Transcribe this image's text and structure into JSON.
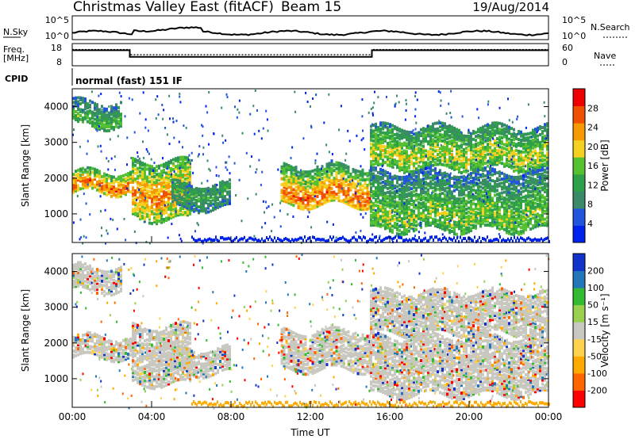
{
  "header": {
    "title": "Christmas Valley East (fitACF)",
    "beam": "Beam 15",
    "date": "19/Aug/2014"
  },
  "top_panels": {
    "nsky_label": "N.Sky",
    "nsky_ticks": [
      "10^5",
      "10^0"
    ],
    "nsearch_label": "N.Search",
    "nsearch_ticks": [
      "10^5",
      "10^0"
    ],
    "freq_label_1": "Freq.",
    "freq_label_2": "[MHz]",
    "freq_ticks": [
      "18",
      "8"
    ],
    "nave_label": "Nave",
    "nave_ticks": [
      "60",
      "0"
    ],
    "cpid_label": "CPID",
    "cpid_text": "normal (fast) 151 IF"
  },
  "colors": {
    "power": [
      "#0022ee",
      "#2255dd",
      "#3a8a6a",
      "#2fa04a",
      "#55c030",
      "#f5d020",
      "#f59a00",
      "#f05000",
      "#ee0000"
    ],
    "velocity": [
      "#ff0000",
      "#ff6600",
      "#ffaa00",
      "#ffd24d",
      "#c8c8c0",
      "#9ad050",
      "#33bb33",
      "#2277bb",
      "#1133cc"
    ]
  },
  "chart_data": [
    {
      "type": "heatmap",
      "name": "power",
      "ylabel": "Slant Range [km]",
      "yticks": [
        "4000",
        "3000",
        "2000",
        "1000"
      ],
      "ylim": [
        200,
        4500
      ],
      "xlim": [
        0,
        24
      ],
      "colorbar_label": "Power [dB]",
      "colorbar_ticks": [
        "28",
        "24",
        "20",
        "16",
        "12",
        "8",
        "4"
      ],
      "colorbar_range": [
        0,
        30
      ],
      "features": [
        {
          "t0": 0,
          "t1": 3.0,
          "r0": 1650,
          "r1": 1850,
          "r2": 2250,
          "level": 24
        },
        {
          "t0": 0,
          "t1": 2.5,
          "r0": 3500,
          "r1": 3650,
          "r2": 4200,
          "level": 12
        },
        {
          "t0": 3.0,
          "t1": 6.0,
          "r0": 900,
          "r1": 1600,
          "r2": 2500,
          "level": 22
        },
        {
          "t0": 5.0,
          "t1": 8.0,
          "r0": 1200,
          "r1": 1600,
          "r2": 1900,
          "level": 10
        },
        {
          "t0": 10.5,
          "t1": 15.0,
          "r0": 1300,
          "r1": 1600,
          "r2": 2400,
          "level": 24
        },
        {
          "t0": 15.0,
          "t1": 24.0,
          "r0": 2300,
          "r1": 2700,
          "r2": 3500,
          "level": 16
        },
        {
          "t0": 15.0,
          "t1": 24.0,
          "r0": 600,
          "r1": 1000,
          "r2": 2200,
          "level": 14
        }
      ]
    },
    {
      "type": "heatmap",
      "name": "velocity",
      "ylabel": "Slant Range [km]",
      "yticks": [
        "4000",
        "3000",
        "2000",
        "1000"
      ],
      "ylim": [
        200,
        4500
      ],
      "xlim": [
        0,
        24
      ],
      "xlabel": "Time UT",
      "xticks": [
        "00:00",
        "04:00",
        "08:00",
        "12:00",
        "16:00",
        "20:00",
        "00:00"
      ],
      "colorbar_label": "Velocity [m s⁻¹]",
      "colorbar_ticks": [
        "200",
        "100",
        "50",
        "15",
        "-15",
        "-50",
        "-100",
        "-200"
      ],
      "colorbar_range": [
        -250,
        250
      ]
    },
    {
      "type": "line",
      "name": "operating frequency",
      "xlim": [
        0,
        24
      ],
      "ylim": [
        8,
        18
      ],
      "x": [
        0,
        2.9,
        2.9,
        15.1,
        15.1,
        24
      ],
      "y": [
        15,
        15,
        12,
        12,
        15,
        15
      ]
    },
    {
      "type": "line",
      "name": "nave",
      "xlim": [
        0,
        24
      ],
      "ylim": [
        0,
        60
      ],
      "x": [
        0,
        2.9,
        2.9,
        15.1,
        15.1,
        24
      ],
      "y": [
        44,
        44,
        30,
        30,
        44,
        44
      ]
    }
  ]
}
